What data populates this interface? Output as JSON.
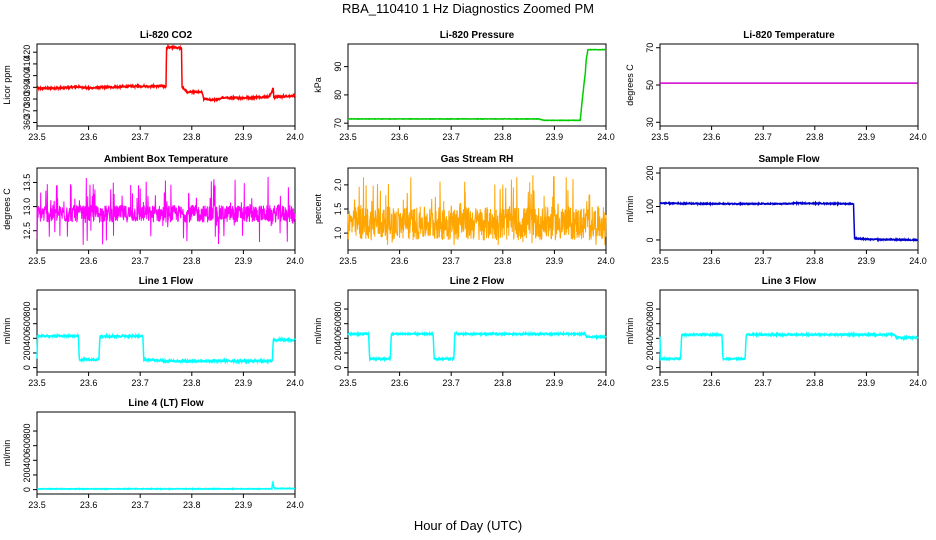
{
  "figure": {
    "title": "RBA_110410  1 Hz Diagnostics Zoomed PM",
    "xlabel": "Hour of Day (UTC)"
  },
  "colors": {
    "red": "#ff0000",
    "green": "#00cc00",
    "magenta": "#ff00ff",
    "orange": "#ffa500",
    "blue": "#0000cc",
    "cyan": "#00ffff"
  },
  "chart_data": [
    {
      "type": "line",
      "title": "Li-820 CO2",
      "ylabel": "Licor ppm",
      "xlim": [
        23.5,
        24.0
      ],
      "xticks": [
        23.5,
        23.6,
        23.7,
        23.8,
        23.9,
        24.0
      ],
      "ylim": [
        357,
        427
      ],
      "yticks": [
        360,
        370,
        380,
        390,
        400,
        410,
        420
      ],
      "color": "#ff0000",
      "noise": 0.8,
      "x": [
        23.5,
        23.55,
        23.58,
        23.6,
        23.63,
        23.7,
        23.75,
        23.751,
        23.77,
        23.78,
        23.781,
        23.792,
        23.82,
        23.823,
        23.84,
        23.86,
        23.9,
        23.95,
        23.958,
        23.959,
        23.962,
        23.97,
        24.0
      ],
      "y": [
        389,
        389.5,
        390.5,
        389.5,
        390,
        391,
        391,
        424,
        424,
        424,
        390,
        386,
        386,
        380,
        379,
        381,
        381,
        382,
        389,
        381,
        382,
        382,
        383
      ]
    },
    {
      "type": "line",
      "title": "Li-820 Pressure",
      "ylabel": "kPa",
      "xlim": [
        23.5,
        24.0
      ],
      "xticks": [
        23.5,
        23.6,
        23.7,
        23.8,
        23.9,
        24.0
      ],
      "ylim": [
        69,
        98
      ],
      "yticks": [
        70,
        80,
        90
      ],
      "color": "#00cc00",
      "noise": 0.05,
      "x": [
        23.5,
        23.87,
        23.88,
        23.95,
        23.955,
        23.96,
        23.962,
        23.965,
        23.97,
        24.0
      ],
      "y": [
        71.5,
        71.5,
        71,
        71,
        80,
        88,
        93,
        96,
        96,
        96
      ]
    },
    {
      "type": "line",
      "title": "Li-820 Temperature",
      "ylabel": "degrees C",
      "xlim": [
        23.5,
        24.0
      ],
      "xticks": [
        23.5,
        23.6,
        23.7,
        23.8,
        23.9,
        24.0
      ],
      "ylim": [
        28,
        72
      ],
      "yticks": [
        30,
        50,
        70
      ],
      "color": "#cc00cc",
      "noise": 0,
      "x": [
        23.5,
        24.0
      ],
      "y": [
        51,
        51
      ]
    },
    {
      "type": "line",
      "title": "Ambient Box Temperature",
      "ylabel": "degrees C",
      "xlim": [
        23.5,
        24.0
      ],
      "xticks": [
        23.5,
        23.6,
        23.7,
        23.8,
        23.9,
        24.0
      ],
      "ylim": [
        12.1,
        13.8
      ],
      "yticks": [
        12.5,
        13.0,
        13.5
      ],
      "color": "#ff00ff",
      "noise": 0.18,
      "spike_range": [
        12.2,
        13.65
      ],
      "x": [
        23.5,
        24.0
      ],
      "y": [
        12.85,
        12.85
      ]
    },
    {
      "type": "line",
      "title": "Gas Stream RH",
      "ylabel": "percent",
      "xlim": [
        23.5,
        24.0
      ],
      "xticks": [
        23.5,
        23.6,
        23.7,
        23.8,
        23.9,
        24.0
      ],
      "ylim": [
        0.65,
        2.35
      ],
      "yticks": [
        1.0,
        1.5,
        2.0
      ],
      "color": "#ffa500",
      "noise": 0.35,
      "spike_range": [
        0.75,
        2.2
      ],
      "x": [
        23.5,
        24.0
      ],
      "y": [
        1.2,
        1.2
      ]
    },
    {
      "type": "line",
      "title": "Sample Flow",
      "ylabel": "ml/min",
      "xlim": [
        23.5,
        24.0
      ],
      "xticks": [
        23.5,
        23.6,
        23.7,
        23.8,
        23.9,
        24.0
      ],
      "ylim": [
        -30,
        215
      ],
      "yticks": [
        0,
        100,
        200
      ],
      "color": "#0000cc",
      "noise": 1.5,
      "x": [
        23.5,
        23.6,
        23.75,
        23.76,
        23.875,
        23.877,
        23.9,
        24.0
      ],
      "y": [
        110,
        108,
        108,
        110,
        108,
        5,
        2,
        0
      ]
    },
    {
      "type": "line",
      "title": "Line 1 Flow",
      "ylabel": "ml/min",
      "xlim": [
        23.5,
        24.0
      ],
      "xticks": [
        23.5,
        23.6,
        23.7,
        23.8,
        23.9,
        24.0
      ],
      "ylim": [
        -60,
        1060
      ],
      "yticks": [
        0,
        200,
        400,
        600,
        800
      ],
      "color": "#00ffff",
      "noise": 15,
      "x": [
        23.5,
        23.501,
        23.58,
        23.582,
        23.62,
        23.622,
        23.705,
        23.707,
        23.75,
        23.956,
        23.958,
        24.0
      ],
      "y": [
        120,
        430,
        430,
        110,
        110,
        430,
        430,
        110,
        90,
        90,
        380,
        380
      ]
    },
    {
      "type": "line",
      "title": "Line 2 Flow",
      "ylabel": "ml/min",
      "xlim": [
        23.5,
        24.0
      ],
      "xticks": [
        23.5,
        23.6,
        23.7,
        23.8,
        23.9,
        24.0
      ],
      "ylim": [
        -60,
        1060
      ],
      "yticks": [
        0,
        200,
        400,
        600,
        800
      ],
      "color": "#00ffff",
      "noise": 10,
      "x": [
        23.5,
        23.54,
        23.542,
        23.582,
        23.584,
        23.665,
        23.667,
        23.705,
        23.707,
        23.96,
        23.962,
        24.0
      ],
      "y": [
        460,
        460,
        120,
        120,
        460,
        460,
        120,
        120,
        460,
        460,
        420,
        420
      ]
    },
    {
      "type": "line",
      "title": "Line 3 Flow",
      "ylabel": "ml/min",
      "xlim": [
        23.5,
        24.0
      ],
      "xticks": [
        23.5,
        23.6,
        23.7,
        23.8,
        23.9,
        24.0
      ],
      "ylim": [
        -60,
        1060
      ],
      "yticks": [
        0,
        200,
        400,
        600,
        800
      ],
      "color": "#00ffff",
      "noise": 10,
      "x": [
        23.5,
        23.501,
        23.54,
        23.542,
        23.62,
        23.622,
        23.665,
        23.667,
        23.955,
        23.957,
        24.0
      ],
      "y": [
        420,
        120,
        120,
        450,
        450,
        120,
        120,
        450,
        450,
        410,
        410
      ]
    },
    {
      "type": "line",
      "title": "Line 4 (LT) Flow",
      "ylabel": "ml/min",
      "xlim": [
        23.5,
        24.0
      ],
      "xticks": [
        23.5,
        23.6,
        23.7,
        23.8,
        23.9,
        24.0
      ],
      "ylim": [
        -60,
        1060
      ],
      "yticks": [
        0,
        200,
        400,
        600,
        800
      ],
      "color": "#00ffff",
      "noise": 4,
      "x": [
        23.5,
        23.955,
        23.957,
        23.959,
        23.961,
        24.0
      ],
      "y": [
        10,
        10,
        110,
        30,
        15,
        15
      ]
    }
  ]
}
